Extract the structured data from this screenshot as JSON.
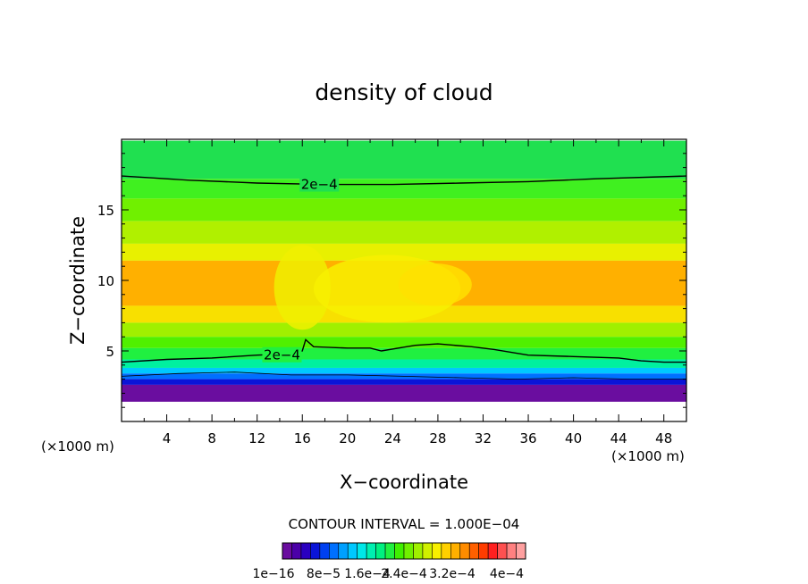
{
  "chart_data": {
    "type": "contour",
    "title": "density of cloud",
    "xlabel": "X−coordinate",
    "ylabel": "Z−coordinate",
    "x_unit_left": "(×1000 m)",
    "x_unit_right": "(×1000 m)",
    "xlim": [
      0,
      50
    ],
    "ylim": [
      0,
      20
    ],
    "x_ticks": [
      4,
      8,
      12,
      16,
      20,
      24,
      28,
      32,
      36,
      40,
      44,
      48
    ],
    "x_tick_labels": [
      "4",
      "8",
      "12",
      "16",
      "20",
      "24",
      "28",
      "32",
      "36",
      "40",
      "44",
      "48"
    ],
    "y_ticks": [
      5,
      10,
      15
    ],
    "y_tick_labels": [
      "5",
      "10",
      "15"
    ],
    "contour_labels": [
      {
        "text": "2e−4",
        "x": 17.5,
        "y": 16.8
      },
      {
        "text": "2e−4",
        "x": 14.2,
        "y": 4.7
      }
    ],
    "contour_interval_text": "CONTOUR INTERVAL = 1.000E−04",
    "colorbar": {
      "labels": [
        "1e−16",
        "8e−5",
        "1.6e−4",
        "2.4e−4",
        "3.2e−4",
        "4e−4"
      ],
      "colors": [
        "#6a0d9f",
        "#4b00a8",
        "#2a00c0",
        "#0a14d8",
        "#0040f0",
        "#0070ff",
        "#00a0ff",
        "#00c8ff",
        "#00e8e8",
        "#00f0b0",
        "#00f080",
        "#20f040",
        "#40f000",
        "#70f000",
        "#a0f000",
        "#d0f000",
        "#f8f000",
        "#ffd000",
        "#ffb000",
        "#ff8c00",
        "#ff6000",
        "#ff3c00",
        "#ff2020",
        "#ff5050",
        "#ff8080",
        "#ffa0a0"
      ]
    },
    "bands": [
      {
        "z": [
          17.2,
          19.9
        ],
        "color": "#20e050"
      },
      {
        "z": [
          15.8,
          17.2
        ],
        "color": "#40f020"
      },
      {
        "z": [
          14.2,
          15.8
        ],
        "color": "#70f000"
      },
      {
        "z": [
          12.6,
          14.2
        ],
        "color": "#b0f000"
      },
      {
        "z": [
          11.4,
          12.6
        ],
        "color": "#e8f000"
      },
      {
        "z": [
          8.2,
          11.4
        ],
        "color": "#ffb000"
      },
      {
        "z": [
          7.0,
          8.2
        ],
        "color": "#f8e000"
      },
      {
        "z": [
          6.0,
          7.0
        ],
        "color": "#a0f000"
      },
      {
        "z": [
          5.2,
          6.0
        ],
        "color": "#50f000"
      },
      {
        "z": [
          4.4,
          5.2
        ],
        "color": "#20f040"
      },
      {
        "z": [
          3.8,
          4.4
        ],
        "color": "#00f0a0"
      },
      {
        "z": [
          3.4,
          3.8
        ],
        "color": "#00c8ff"
      },
      {
        "z": [
          3.0,
          3.4
        ],
        "color": "#0070ff"
      },
      {
        "z": [
          2.6,
          3.0
        ],
        "color": "#0a14d8"
      },
      {
        "z": [
          1.4,
          2.6
        ],
        "color": "#6a0d9f"
      }
    ],
    "features": [
      {
        "type": "gap",
        "x": [
          13.5,
          18.5
        ],
        "z": [
          6.5,
          12.5
        ],
        "color": "#f0f000"
      },
      {
        "type": "gap",
        "x": [
          17,
          30
        ],
        "z": [
          7,
          11.8
        ],
        "color": "#f8f000"
      },
      {
        "type": "gap",
        "x": [
          24.5,
          31
        ],
        "z": [
          8.2,
          11.2
        ],
        "color": "#ffe000"
      }
    ],
    "contour_lines": [
      {
        "x": [
          0,
          6,
          12,
          18,
          24,
          30,
          36,
          42,
          50
        ],
        "z": [
          17.4,
          17.1,
          16.9,
          16.8,
          16.8,
          16.9,
          17.0,
          17.2,
          17.4
        ]
      },
      {
        "x": [
          0,
          4,
          8,
          12,
          15,
          16,
          16.3,
          17,
          20,
          22,
          23,
          26,
          28,
          31,
          33,
          36,
          40,
          44,
          46,
          48,
          50
        ],
        "z": [
          4.2,
          4.4,
          4.5,
          4.7,
          4.8,
          5.0,
          5.8,
          5.3,
          5.2,
          5.2,
          5.0,
          5.4,
          5.5,
          5.3,
          5.1,
          4.7,
          4.6,
          4.5,
          4.3,
          4.2,
          4.2
        ]
      },
      {
        "x": [
          0,
          5,
          10,
          15,
          20,
          25,
          30,
          35,
          40,
          45,
          50
        ],
        "z": [
          3.2,
          3.4,
          3.5,
          3.3,
          3.3,
          3.2,
          3.1,
          3.0,
          3.1,
          3.0,
          3.0
        ]
      }
    ]
  }
}
